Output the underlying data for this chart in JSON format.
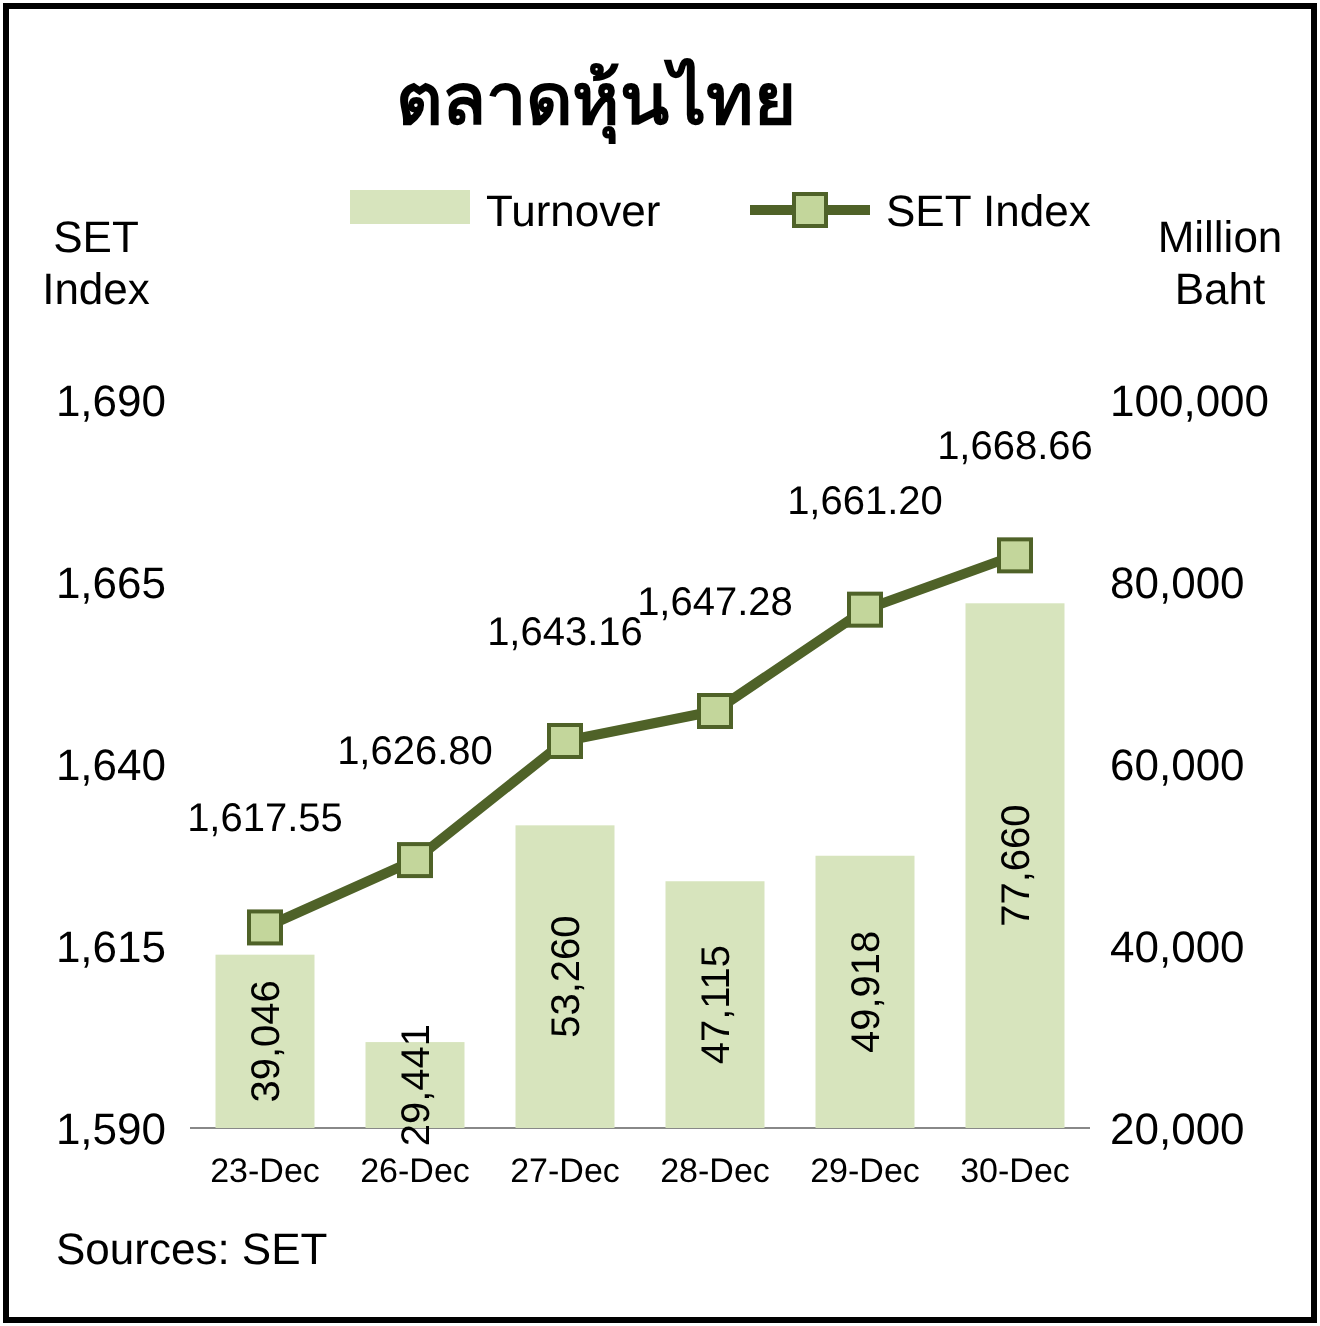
{
  "chart_data": {
    "type": "bar",
    "title": "ตลาดหุ้นไทย",
    "ylabel": "SET Index",
    "y2label": "Million Baht",
    "categories": [
      "23-Dec",
      "26-Dec",
      "27-Dec",
      "28-Dec",
      "29-Dec",
      "30-Dec"
    ],
    "series": [
      {
        "name": "Turnover",
        "axis": "y2",
        "color": "#d7e4bd",
        "values": [
          39046,
          29441,
          53260,
          47115,
          49918,
          77660
        ],
        "value_labels": [
          "39,046",
          "29,441",
          "53,260",
          "47,115",
          "49,918",
          "77,660"
        ]
      },
      {
        "name": "SET Index",
        "type": "line",
        "axis": "y",
        "color": "#4f6228",
        "values": [
          1617.55,
          1626.8,
          1643.16,
          1647.28,
          1661.2,
          1668.66
        ],
        "value_labels": [
          "1,617.55",
          "1,626.80",
          "1,643.16",
          "1,647.28",
          "1,661.20",
          "1,668.66"
        ]
      }
    ],
    "ylim": [
      1590,
      1690
    ],
    "yticks": [
      {
        "value": 1590,
        "label": "1,590"
      },
      {
        "value": 1615,
        "label": "1,615"
      },
      {
        "value": 1640,
        "label": "1,640"
      },
      {
        "value": 1665,
        "label": "1,665"
      },
      {
        "value": 1690,
        "label": "1,690"
      }
    ],
    "y2lim": [
      20000,
      100000
    ],
    "y2ticks": [
      {
        "value": 20000,
        "label": "20,000"
      },
      {
        "value": 40000,
        "label": "40,000"
      },
      {
        "value": 60000,
        "label": "60,000"
      },
      {
        "value": 80000,
        "label": "80,000"
      },
      {
        "value": 100000,
        "label": "100,000"
      }
    ],
    "legend": "top",
    "marker": "square",
    "line_style": "solid",
    "annotations": [
      "Sources: SET"
    ]
  }
}
